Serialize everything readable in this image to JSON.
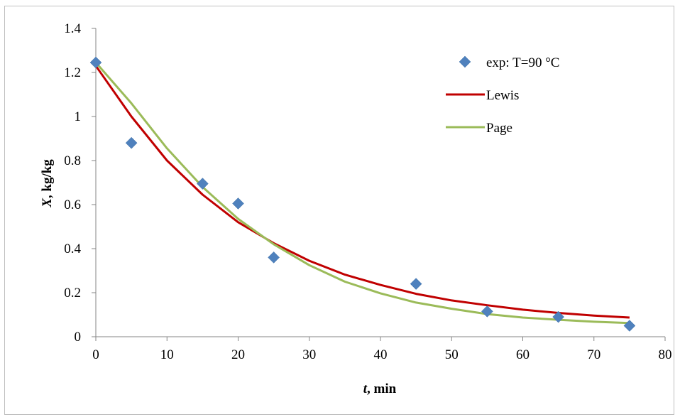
{
  "chart_data": {
    "type": "line",
    "xlabel_var": "t",
    "xlabel_unit": ", min",
    "ylabel_var": "X",
    "ylabel_unit": ", kg/kg",
    "xlim": [
      0,
      80
    ],
    "ylim": [
      0,
      1.4
    ],
    "x_ticks": [
      "0",
      "10",
      "20",
      "30",
      "40",
      "50",
      "60",
      "70",
      "80"
    ],
    "y_ticks": [
      "0",
      "0.2",
      "0.4",
      "0.6",
      "0.8",
      "1",
      "1.2",
      "1.4"
    ],
    "grid": false,
    "legend_position": "top-right",
    "series": [
      {
        "name": "exp: T=90 °C",
        "kind": "scatter",
        "marker": "diamond",
        "color": "#4f81bd",
        "x": [
          0,
          5,
          15,
          20,
          25,
          45,
          55,
          65,
          75
        ],
        "y": [
          1.245,
          0.88,
          0.695,
          0.605,
          0.36,
          0.24,
          0.115,
          0.09,
          0.05
        ]
      },
      {
        "name": "Lewis",
        "kind": "line",
        "color": "#c00000",
        "x": [
          0,
          5,
          10,
          15,
          20,
          25,
          30,
          35,
          40,
          45,
          50,
          55,
          60,
          65,
          70,
          75
        ],
        "y": [
          1.23,
          1.0,
          0.8,
          0.645,
          0.52,
          0.425,
          0.345,
          0.282,
          0.235,
          0.195,
          0.165,
          0.143,
          0.123,
          0.108,
          0.096,
          0.087
        ]
      },
      {
        "name": "Page",
        "kind": "line",
        "color": "#9bbb59",
        "x": [
          0,
          5,
          10,
          15,
          20,
          25,
          30,
          35,
          40,
          45,
          50,
          55,
          60,
          65,
          70,
          75
        ],
        "y": [
          1.245,
          1.06,
          0.855,
          0.68,
          0.535,
          0.42,
          0.325,
          0.25,
          0.197,
          0.155,
          0.127,
          0.103,
          0.087,
          0.077,
          0.068,
          0.062
        ]
      }
    ]
  }
}
